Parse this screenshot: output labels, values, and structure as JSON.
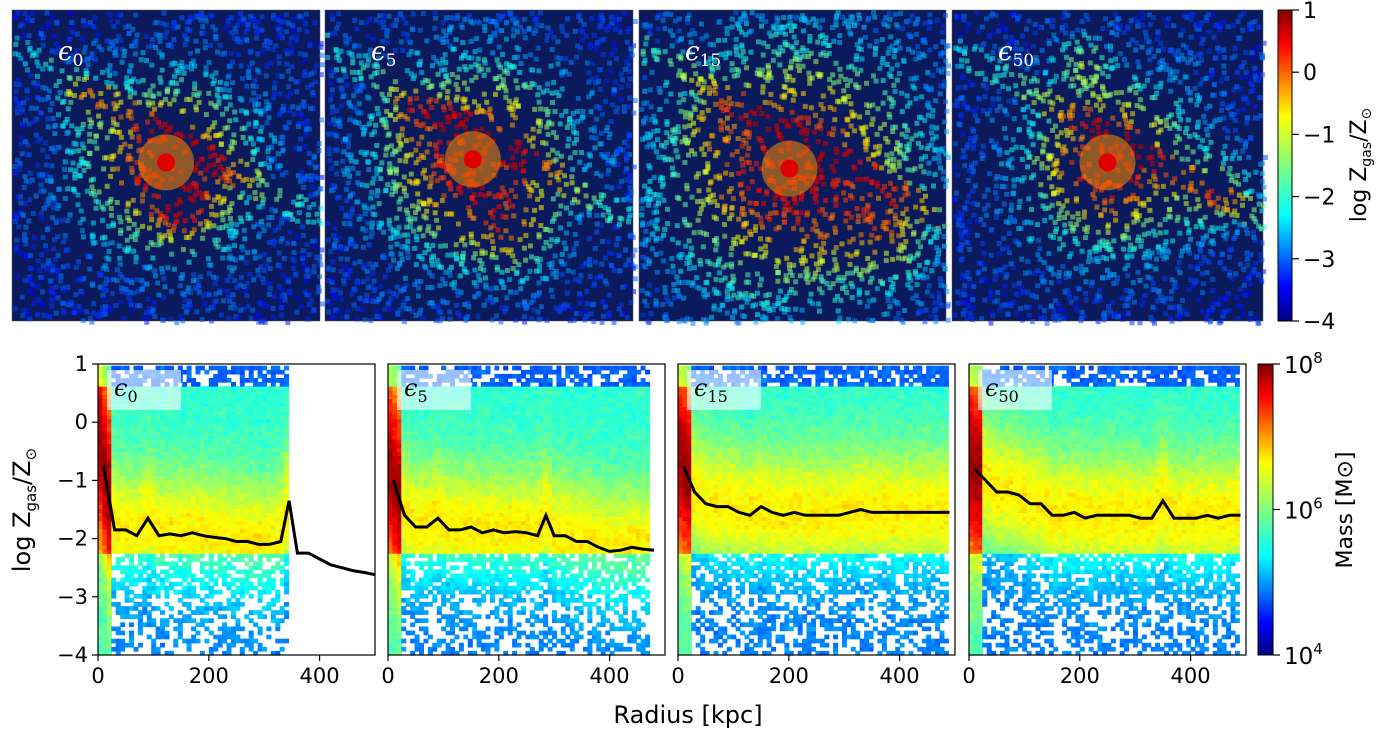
{
  "colors": {
    "jet": [
      "#00007f",
      "#0000ff",
      "#007fff",
      "#00ffff",
      "#7fff7f",
      "#ffff00",
      "#ff7f00",
      "#ff0000",
      "#7f0000"
    ],
    "median_line": "#000000",
    "map_background": "#0a1a5c"
  },
  "maps": {
    "panels": [
      {
        "label": "ϵ",
        "sub": "0"
      },
      {
        "label": "ϵ",
        "sub": "5"
      },
      {
        "label": "ϵ",
        "sub": "15"
      },
      {
        "label": "ϵ",
        "sub": "50"
      }
    ],
    "colorbar": {
      "label_main": "log Z",
      "label_sub1": "gas",
      "label_mid": "/Z",
      "label_sub2": "⊙",
      "ticks": [
        "1",
        "0",
        "−1",
        "−2",
        "−3",
        "−4"
      ],
      "range": [
        -4,
        1
      ]
    }
  },
  "chart_data": [
    {
      "type": "heatmap",
      "title": "",
      "xlabel": "Radius [kpc]",
      "ylabel": "log Zgas/Z⊙",
      "xlim": [
        0,
        500
      ],
      "ylim": [
        -4,
        1
      ],
      "xticks": [
        "0",
        "200",
        "400"
      ],
      "yticks": [
        "1",
        "0",
        "−1",
        "−2",
        "−3",
        "−4"
      ],
      "colorbar": {
        "label": "Mass [M⊙]",
        "ticks": [
          "10^8",
          "10^6",
          "10^4"
        ],
        "range_log": [
          4,
          8
        ]
      },
      "panels": [
        {
          "label": "ϵ",
          "sub": "0",
          "median": {
            "x": [
              10,
              30,
              50,
              70,
              90,
              110,
              130,
              150,
              170,
              190,
              210,
              230,
              250,
              270,
              290,
              310,
              330,
              345,
              360,
              380,
              400,
              420,
              440,
              460,
              480,
              500
            ],
            "y": [
              -0.75,
              -1.85,
              -1.85,
              -1.95,
              -1.65,
              -1.95,
              -1.92,
              -1.95,
              -1.9,
              -1.95,
              -1.98,
              -2.0,
              -2.05,
              -2.05,
              -2.1,
              -2.1,
              -2.05,
              -1.35,
              -2.25,
              -2.25,
              -2.35,
              -2.45,
              -2.5,
              -2.55,
              -2.58,
              -2.62
            ]
          }
        },
        {
          "label": "ϵ",
          "sub": "5",
          "median": {
            "x": [
              10,
              30,
              50,
              70,
              90,
              110,
              130,
              150,
              170,
              190,
              210,
              230,
              250,
              270,
              285,
              300,
              320,
              340,
              360,
              380,
              400,
              420,
              440,
              460,
              480
            ],
            "y": [
              -1.0,
              -1.6,
              -1.8,
              -1.8,
              -1.65,
              -1.85,
              -1.85,
              -1.8,
              -1.9,
              -1.85,
              -1.9,
              -1.88,
              -1.9,
              -1.95,
              -1.6,
              -1.95,
              -1.95,
              -2.05,
              -2.05,
              -2.15,
              -2.22,
              -2.2,
              -2.15,
              -2.18,
              -2.2
            ]
          }
        },
        {
          "label": "ϵ",
          "sub": "15",
          "median": {
            "x": [
              10,
              30,
              50,
              70,
              90,
              110,
              130,
              150,
              170,
              190,
              210,
              230,
              250,
              270,
              290,
              310,
              330,
              350,
              370,
              390,
              410,
              430,
              450,
              470,
              490
            ],
            "y": [
              -0.75,
              -1.2,
              -1.4,
              -1.45,
              -1.45,
              -1.55,
              -1.6,
              -1.45,
              -1.55,
              -1.6,
              -1.55,
              -1.6,
              -1.6,
              -1.6,
              -1.6,
              -1.55,
              -1.5,
              -1.55,
              -1.55,
              -1.55,
              -1.55,
              -1.55,
              -1.55,
              -1.55,
              -1.55
            ]
          }
        },
        {
          "label": "ϵ",
          "sub": "50",
          "median": {
            "x": [
              10,
              30,
              50,
              70,
              90,
              110,
              130,
              150,
              170,
              190,
              210,
              230,
              250,
              270,
              290,
              310,
              330,
              350,
              370,
              390,
              410,
              430,
              450,
              470,
              490
            ],
            "y": [
              -0.8,
              -1.0,
              -1.2,
              -1.2,
              -1.25,
              -1.4,
              -1.4,
              -1.6,
              -1.6,
              -1.55,
              -1.65,
              -1.6,
              -1.6,
              -1.6,
              -1.6,
              -1.65,
              -1.65,
              -1.35,
              -1.65,
              -1.65,
              -1.65,
              -1.6,
              -1.65,
              -1.6,
              -1.6
            ]
          }
        }
      ]
    }
  ]
}
